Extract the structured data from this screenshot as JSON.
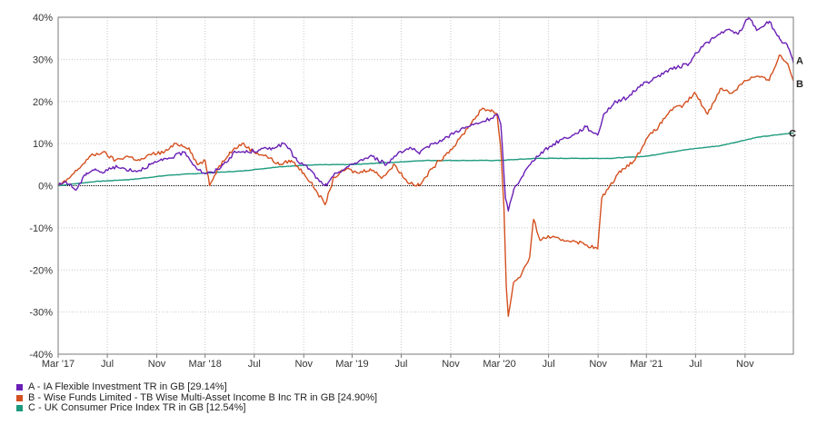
{
  "chart_data": {
    "type": "line",
    "title": "",
    "xlabel": "",
    "ylabel": "",
    "x_ticks": [
      "Mar '17",
      "Jul",
      "Nov",
      "Mar '18",
      "Jul",
      "Nov",
      "Mar '19",
      "Jul",
      "Nov",
      "Mar '20",
      "Jul",
      "Nov",
      "Mar '21",
      "Jul",
      "Nov"
    ],
    "y_ticks": [
      "40%",
      "30%",
      "20%",
      "10%",
      "0%",
      "-10%",
      "-20%",
      "-30%",
      "-40%"
    ],
    "ylim": [
      -40,
      40
    ],
    "grid": true,
    "legend_position": "bottom-left",
    "series": [
      {
        "key": "A",
        "name": "A - IA Flexible Investment TR in GB [29.14%]",
        "end_label": "A",
        "color": "#6a1fb5",
        "points": [
          [
            "2017-03-01",
            0
          ],
          [
            "2017-03-20",
            1
          ],
          [
            "2017-04-15",
            -1
          ],
          [
            "2017-05-10",
            3
          ],
          [
            "2017-06-01",
            4
          ],
          [
            "2017-06-20",
            3
          ],
          [
            "2017-07-15",
            4.5
          ],
          [
            "2017-08-15",
            4
          ],
          [
            "2017-09-15",
            3.5
          ],
          [
            "2017-10-15",
            5
          ],
          [
            "2017-11-15",
            6
          ],
          [
            "2017-12-15",
            7
          ],
          [
            "2018-01-10",
            8
          ],
          [
            "2018-02-05",
            4.5
          ],
          [
            "2018-02-25",
            3
          ],
          [
            "2018-03-20",
            3
          ],
          [
            "2018-04-15",
            5
          ],
          [
            "2018-05-15",
            8
          ],
          [
            "2018-06-15",
            8
          ],
          [
            "2018-07-15",
            8.5
          ],
          [
            "2018-08-15",
            9
          ],
          [
            "2018-09-15",
            10
          ],
          [
            "2018-10-15",
            6
          ],
          [
            "2018-11-15",
            4
          ],
          [
            "2018-12-10",
            1
          ],
          [
            "2018-12-28",
            0
          ],
          [
            "2019-01-20",
            3
          ],
          [
            "2019-02-20",
            4.5
          ],
          [
            "2019-03-20",
            6
          ],
          [
            "2019-04-20",
            7
          ],
          [
            "2019-05-25",
            5
          ],
          [
            "2019-06-25",
            8
          ],
          [
            "2019-07-25",
            9
          ],
          [
            "2019-08-15",
            7.5
          ],
          [
            "2019-09-15",
            10
          ],
          [
            "2019-10-15",
            11
          ],
          [
            "2019-11-15",
            13
          ],
          [
            "2019-12-15",
            14
          ],
          [
            "2020-01-15",
            15
          ],
          [
            "2020-02-10",
            16
          ],
          [
            "2020-02-25",
            17
          ],
          [
            "2020-03-05",
            14
          ],
          [
            "2020-03-16",
            -3
          ],
          [
            "2020-03-23",
            -6
          ],
          [
            "2020-04-05",
            -1
          ],
          [
            "2020-05-01",
            3
          ],
          [
            "2020-06-01",
            7
          ],
          [
            "2020-07-01",
            9
          ],
          [
            "2020-08-01",
            11
          ],
          [
            "2020-09-01",
            12
          ],
          [
            "2020-10-01",
            14
          ],
          [
            "2020-10-31",
            12
          ],
          [
            "2020-11-15",
            17
          ],
          [
            "2020-12-15",
            20
          ],
          [
            "2021-01-15",
            21
          ],
          [
            "2021-02-15",
            24
          ],
          [
            "2021-03-15",
            25
          ],
          [
            "2021-04-15",
            27
          ],
          [
            "2021-05-15",
            28
          ],
          [
            "2021-06-15",
            29
          ],
          [
            "2021-07-15",
            33
          ],
          [
            "2021-08-15",
            35
          ],
          [
            "2021-09-15",
            37
          ],
          [
            "2021-10-15",
            36
          ],
          [
            "2021-11-10",
            40
          ],
          [
            "2021-12-01",
            37
          ],
          [
            "2021-12-31",
            39
          ],
          [
            "2022-01-25",
            35
          ],
          [
            "2022-02-15",
            33
          ],
          [
            "2022-03-01",
            29.14
          ]
        ]
      },
      {
        "key": "B",
        "name": "B - Wise Funds Limited - TB Wise Multi-Asset Income B Inc TR in GB [24.90%]",
        "end_label": "B",
        "color": "#d4501f",
        "points": [
          [
            "2017-03-01",
            0
          ],
          [
            "2017-03-20",
            1
          ],
          [
            "2017-04-20",
            4
          ],
          [
            "2017-05-20",
            7
          ],
          [
            "2017-06-20",
            8
          ],
          [
            "2017-07-20",
            6
          ],
          [
            "2017-08-20",
            7
          ],
          [
            "2017-09-20",
            6
          ],
          [
            "2017-10-20",
            7.5
          ],
          [
            "2017-11-20",
            8
          ],
          [
            "2017-12-20",
            10
          ],
          [
            "2018-01-20",
            9
          ],
          [
            "2018-02-10",
            5
          ],
          [
            "2018-03-01",
            6
          ],
          [
            "2018-03-12",
            0
          ],
          [
            "2018-04-01",
            4
          ],
          [
            "2018-05-01",
            8
          ],
          [
            "2018-06-01",
            10
          ],
          [
            "2018-07-01",
            8
          ],
          [
            "2018-08-01",
            7
          ],
          [
            "2018-09-01",
            5
          ],
          [
            "2018-10-01",
            6
          ],
          [
            "2018-11-01",
            3
          ],
          [
            "2018-12-01",
            -1
          ],
          [
            "2018-12-24",
            -4.5
          ],
          [
            "2019-01-15",
            2
          ],
          [
            "2019-02-15",
            4
          ],
          [
            "2019-03-15",
            3
          ],
          [
            "2019-04-15",
            4
          ],
          [
            "2019-05-15",
            2
          ],
          [
            "2019-06-15",
            5
          ],
          [
            "2019-07-15",
            1
          ],
          [
            "2019-08-15",
            0
          ],
          [
            "2019-09-15",
            4
          ],
          [
            "2019-10-15",
            7
          ],
          [
            "2019-11-15",
            10
          ],
          [
            "2019-12-15",
            14
          ],
          [
            "2020-01-15",
            18
          ],
          [
            "2020-02-10",
            18
          ],
          [
            "2020-02-24",
            17
          ],
          [
            "2020-03-05",
            8
          ],
          [
            "2020-03-12",
            -5
          ],
          [
            "2020-03-18",
            -24
          ],
          [
            "2020-03-23",
            -31
          ],
          [
            "2020-04-05",
            -23
          ],
          [
            "2020-04-25",
            -21
          ],
          [
            "2020-05-15",
            -17
          ],
          [
            "2020-05-25",
            -8
          ],
          [
            "2020-06-10",
            -13
          ],
          [
            "2020-07-01",
            -12
          ],
          [
            "2020-08-01",
            -13
          ],
          [
            "2020-09-01",
            -13
          ],
          [
            "2020-10-01",
            -14
          ],
          [
            "2020-10-31",
            -15
          ],
          [
            "2020-11-10",
            -3
          ],
          [
            "2020-11-30",
            0
          ],
          [
            "2020-12-31",
            4
          ],
          [
            "2021-01-31",
            6
          ],
          [
            "2021-02-28",
            11
          ],
          [
            "2021-03-31",
            14
          ],
          [
            "2021-04-30",
            18
          ],
          [
            "2021-05-31",
            19
          ],
          [
            "2021-06-30",
            22
          ],
          [
            "2021-07-31",
            17
          ],
          [
            "2021-08-31",
            23
          ],
          [
            "2021-09-30",
            22
          ],
          [
            "2021-10-31",
            25
          ],
          [
            "2021-11-30",
            26
          ],
          [
            "2021-12-31",
            25
          ],
          [
            "2022-01-25",
            31
          ],
          [
            "2022-02-15",
            29
          ],
          [
            "2022-03-01",
            24.9
          ]
        ]
      },
      {
        "key": "C",
        "name": "C - UK Consumer Price Index TR in GB [12.54%]",
        "end_label": "C",
        "color": "#1d9a7e",
        "points": [
          [
            "2017-03-01",
            0
          ],
          [
            "2017-06-01",
            1
          ],
          [
            "2017-09-01",
            1.5
          ],
          [
            "2017-12-01",
            2.5
          ],
          [
            "2018-03-01",
            3
          ],
          [
            "2018-06-01",
            3.5
          ],
          [
            "2018-09-01",
            4.5
          ],
          [
            "2018-12-01",
            5
          ],
          [
            "2019-03-01",
            5
          ],
          [
            "2019-06-01",
            5.5
          ],
          [
            "2019-09-01",
            6
          ],
          [
            "2019-12-01",
            6
          ],
          [
            "2020-03-01",
            6
          ],
          [
            "2020-06-01",
            6.5
          ],
          [
            "2020-09-01",
            6.5
          ],
          [
            "2020-12-01",
            6.5
          ],
          [
            "2021-03-01",
            7
          ],
          [
            "2021-06-01",
            8.5
          ],
          [
            "2021-09-01",
            9.5
          ],
          [
            "2021-12-01",
            11.5
          ],
          [
            "2022-03-01",
            12.54
          ]
        ]
      }
    ]
  }
}
